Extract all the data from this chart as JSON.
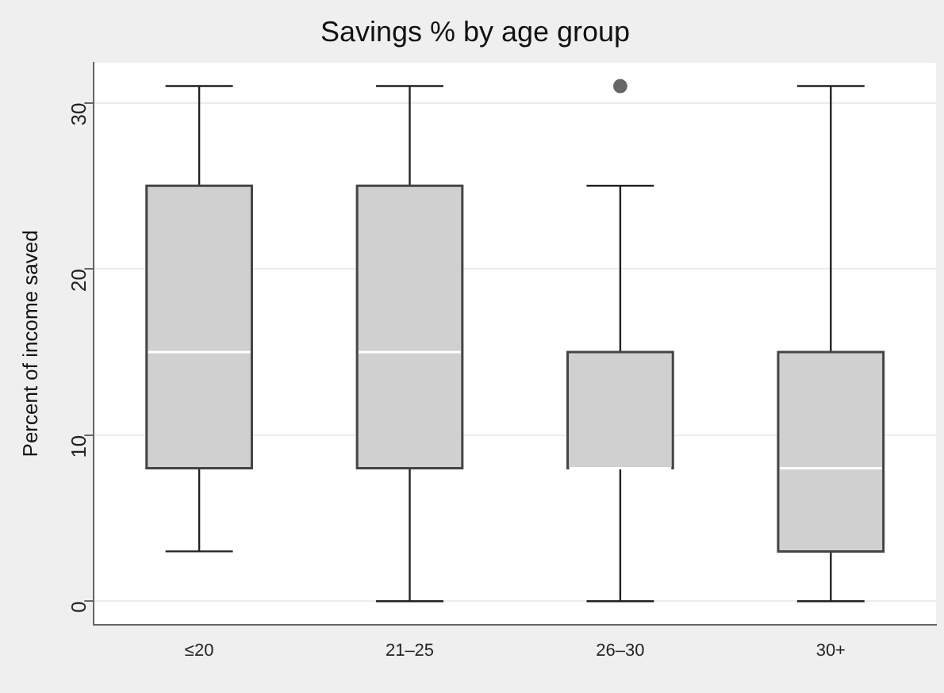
{
  "chart_data": {
    "type": "box",
    "title": "Savings % by age group",
    "ylabel": "Percent of income saved",
    "categories": [
      "≤20",
      "21–25",
      "26–30",
      "30+"
    ],
    "boxes": [
      {
        "low": 3,
        "q1": 8,
        "median": 15,
        "q3": 25,
        "high": 31
      },
      {
        "low": 0,
        "q1": 8,
        "median": 15,
        "q3": 25,
        "high": 31
      },
      {
        "low": 0,
        "q1": 8,
        "median": 8,
        "q3": 15,
        "high": 25,
        "outliers": [
          31
        ]
      },
      {
        "low": 0,
        "q1": 3,
        "median": 8,
        "q3": 15,
        "high": 31
      }
    ],
    "color": "#d0d0d0",
    "ylim": [
      -1.4,
      32.4
    ],
    "yticks": [
      0,
      10,
      20,
      30
    ],
    "grid": "y",
    "legend": false
  }
}
